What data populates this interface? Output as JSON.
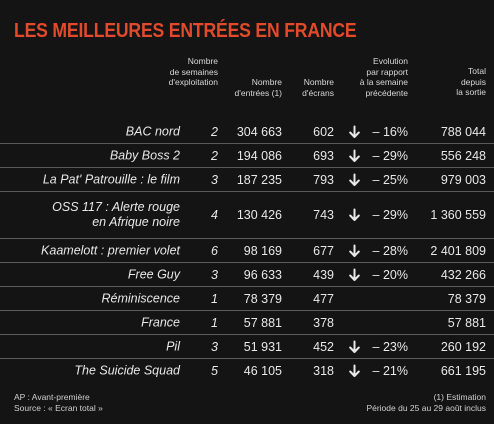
{
  "title": "LES MEILLEURES ENTRÉES EN FRANCE",
  "headers": {
    "weeks": [
      "Nombre",
      "de semaines",
      "d'exploitation"
    ],
    "entries": [
      "Nombre",
      "d'entrées (1)"
    ],
    "screens": [
      "Nombre",
      "d'écrans"
    ],
    "evolution": [
      "Evolution",
      "par rapport",
      "à la semaine",
      "précédente"
    ],
    "total": [
      "Total",
      "depuis",
      "la sortie"
    ]
  },
  "rows": [
    {
      "title": [
        "BAC nord"
      ],
      "weeks": "2",
      "entries": "304 663",
      "screens": "602",
      "arrow": true,
      "evolution": "– 16%",
      "total": "788 044"
    },
    {
      "title": [
        "Baby Boss 2"
      ],
      "weeks": "2",
      "entries": "194 086",
      "screens": "693",
      "arrow": true,
      "evolution": "– 29%",
      "total": "556 248"
    },
    {
      "title": [
        "La Pat' Patrouille : le film"
      ],
      "weeks": "3",
      "entries": "187 235",
      "screens": "793",
      "arrow": true,
      "evolution": "– 25%",
      "total": "979 003"
    },
    {
      "title": [
        "OSS 117 : Alerte rouge",
        "en Afrique noire"
      ],
      "weeks": "4",
      "entries": "130 426",
      "screens": "743",
      "arrow": true,
      "evolution": "– 29%",
      "total": "1 360 559"
    },
    {
      "title": [
        "Kaamelott : premier volet"
      ],
      "weeks": "6",
      "entries": "98 169",
      "screens": "677",
      "arrow": true,
      "evolution": "– 28%",
      "total": "2 401 809"
    },
    {
      "title": [
        "Free Guy"
      ],
      "weeks": "3",
      "entries": "96 633",
      "screens": "439",
      "arrow": true,
      "evolution": "– 20%",
      "total": "432 266"
    },
    {
      "title": [
        "Réminiscence"
      ],
      "weeks": "1",
      "entries": "78 379",
      "screens": "477",
      "arrow": false,
      "evolution": "",
      "total": "78 379"
    },
    {
      "title": [
        "France"
      ],
      "weeks": "1",
      "entries": "57 881",
      "screens": "378",
      "arrow": false,
      "evolution": "",
      "total": "57 881"
    },
    {
      "title": [
        "Pil"
      ],
      "weeks": "3",
      "entries": "51 931",
      "screens": "452",
      "arrow": true,
      "evolution": "– 23%",
      "total": "260 192"
    },
    {
      "title": [
        "The Suicide Squad"
      ],
      "weeks": "5",
      "entries": "46 105",
      "screens": "318",
      "arrow": true,
      "evolution": "– 21%",
      "total": "661 195"
    }
  ],
  "footnotes": {
    "left": [
      "AP : Avant-première",
      "Source : « Ecran total »"
    ],
    "right": [
      "(1) Estimation",
      "Période du 25 au 29 août inclus"
    ]
  },
  "colors": {
    "title": "#e24a2b",
    "background": "#141414",
    "text": "#e8e8e8",
    "rule": "#5a5a5a"
  }
}
